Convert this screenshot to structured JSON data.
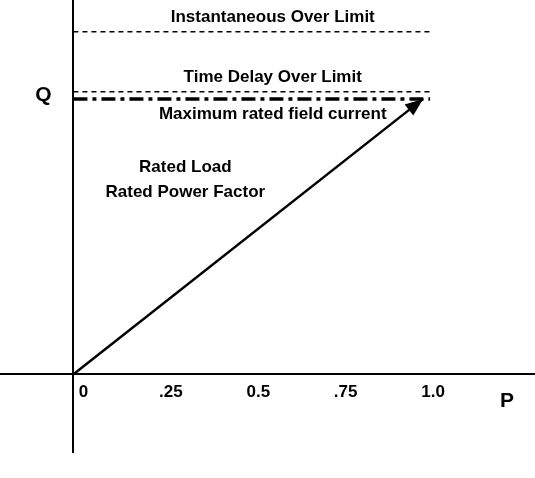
{
  "chart_data": {
    "type": "line",
    "x_label": "P",
    "y_label": "Q",
    "xlim": [
      -0.21,
      1.32
    ],
    "ylim": [
      -0.22,
      1.06
    ],
    "xticks": [
      0,
      {
        "value": 0.25,
        "label": ".25"
      },
      {
        "value": 0.5,
        "label": "0.5"
      },
      {
        "value": 0.75,
        "label": ".75"
      },
      {
        "value": 1,
        "label": "1.0"
      }
    ],
    "tick_labels": "x",
    "grid": false,
    "annotations": [
      "Rated Load",
      "Rated Power Factor"
    ],
    "series": [
      {
        "name": "Instantaneous Over Limit",
        "x": [
          0,
          1.02
        ],
        "values": [
          0.97,
          0.97
        ],
        "color": "#000000",
        "line_style": "dashed"
      },
      {
        "name": "Time Delay Over Limit",
        "x": [
          0,
          1.02
        ],
        "values": [
          0.8,
          0.8
        ],
        "color": "#000000",
        "line_style": "dashed"
      },
      {
        "name": "Maximum rated field current",
        "x": [
          0,
          1.02
        ],
        "values": [
          0.78,
          0.78
        ],
        "color": "#000000",
        "line_style": "dashdot"
      },
      {
        "x": [
          0,
          1.0
        ],
        "values": [
          0,
          0.78
        ],
        "color": "#000000",
        "line_style": "solid",
        "marker": "arrow"
      }
    ]
  }
}
